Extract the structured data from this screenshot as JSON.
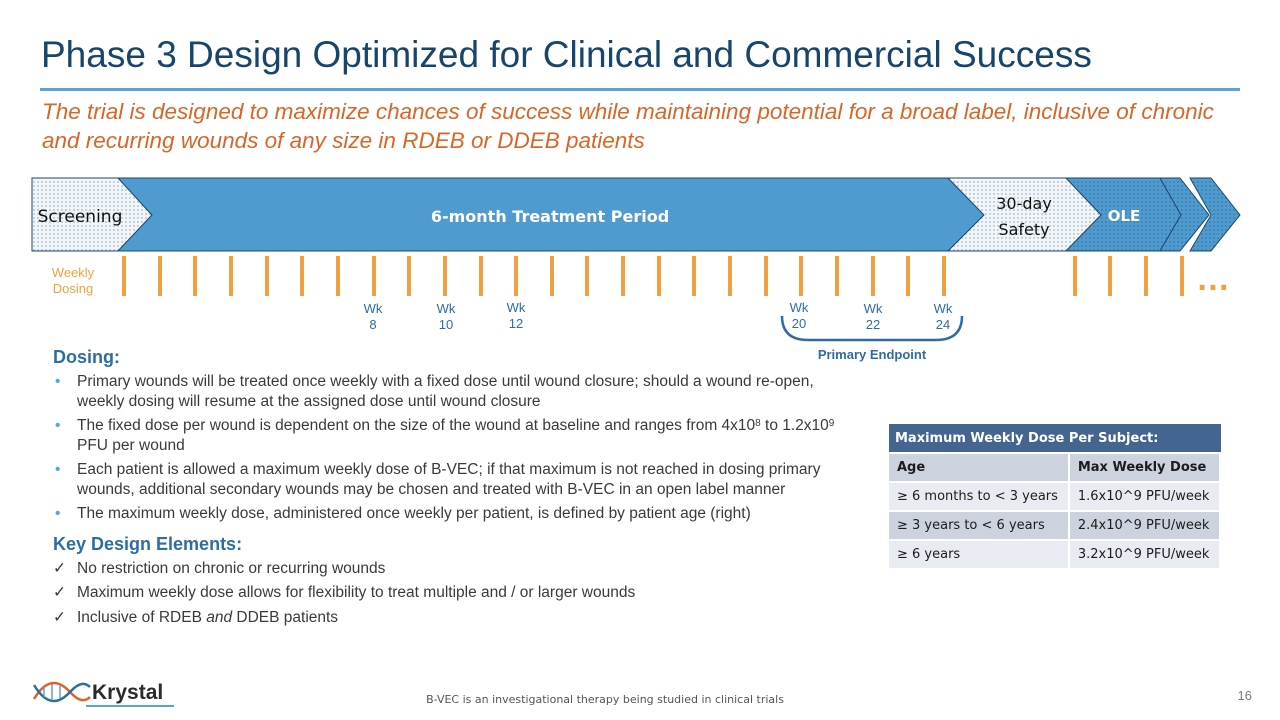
{
  "slide": {
    "title": "Phase 3 Design Optimized for Clinical and Commercial Success",
    "subtitle": "The trial is designed to maximize chances of success while maintaining potential for a broad label, inclusive of chronic and recurring wounds of any size in RDEB or DDEB patients",
    "page_number": "16",
    "footer_note": "B-VEC is an investigational therapy being studied in clinical trials",
    "logo_text": "Krystal"
  },
  "timeline": {
    "screening": "Screening",
    "treatment": "6-month Treatment Period",
    "safety_line1": "30-day",
    "safety_line2": "Safety",
    "ole": "OLE",
    "weekly_dosing_line1": "Weekly",
    "weekly_dosing_line2": "Dosing",
    "ellipsis": "…",
    "week_labels": [
      {
        "wk": "Wk",
        "num": "8"
      },
      {
        "wk": "Wk",
        "num": "10"
      },
      {
        "wk": "Wk",
        "num": "12"
      },
      {
        "wk": "Wk",
        "num": "20"
      },
      {
        "wk": "Wk",
        "num": "22"
      },
      {
        "wk": "Wk",
        "num": "24"
      }
    ],
    "primary_endpoint": "Primary Endpoint",
    "colors": {
      "treatment": "#4f9bd0",
      "dosing_tick": "#f0a040",
      "text_blue": "#2e6da4",
      "title": "#17456b",
      "subtitle": "#d96528"
    }
  },
  "dosing": {
    "heading": "Dosing:",
    "b1": "Primary wounds will be treated once weekly with a fixed dose until wound closure; should a wound re-open, weekly dosing will resume at the assigned dose until wound closure",
    "b2_part1": "The fixed dose per wound is dependent on the size of the wound at baseline and ranges from 4x10",
    "b2_sup1": "8",
    "b2_part2": " to 1.2x10",
    "b2_sup2": "9",
    "b2_part3": " PFU per wound",
    "b3": "Each patient is allowed a maximum weekly dose of B-VEC; if that maximum is not reached in dosing primary wounds, additional secondary wounds may be chosen and treated with B-VEC in an open label manner",
    "b4": "The maximum weekly dose, administered once weekly per patient, is defined by patient age (right)"
  },
  "key_design": {
    "heading": "Key Design Elements:",
    "c1": "No restriction on chronic or recurring wounds",
    "c2": "Maximum weekly dose allows for flexibility to treat multiple and / or larger wounds",
    "c3_part1": "Inclusive of RDEB ",
    "c3_italic": "and",
    "c3_part2": " DDEB patients"
  },
  "dose_table": {
    "title": "Maximum Weekly Dose Per Subject:",
    "headers": [
      "Age",
      "Max Weekly Dose"
    ],
    "rows": [
      [
        "≥ 6 months to < 3 years",
        "1.6x10^9 PFU/week"
      ],
      [
        "≥ 3 years to < 6 years",
        "2.4x10^9 PFU/week"
      ],
      [
        "≥ 6 years",
        "3.2x10^9 PFU/week"
      ]
    ]
  }
}
